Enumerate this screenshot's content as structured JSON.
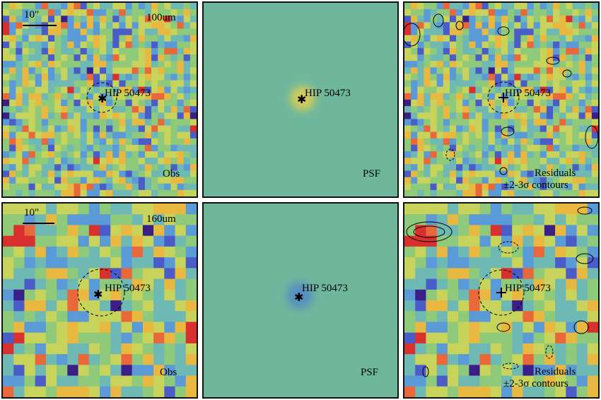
{
  "rows": [
    {
      "band": "100um",
      "scale_label": "10\"",
      "source": "HIP 50473",
      "panels": [
        {
          "type": "Obs",
          "label": "Obs"
        },
        {
          "type": "PSF",
          "label": "PSF"
        },
        {
          "type": "Residuals",
          "label_line1": "Residuals",
          "label_line2": "±2-3σ contours"
        }
      ]
    },
    {
      "band": "160um",
      "scale_label": "10\"",
      "source": "HIP 50473",
      "panels": [
        {
          "type": "Obs",
          "label": "Obs"
        },
        {
          "type": "PSF",
          "label": "PSF"
        },
        {
          "type": "Residuals",
          "label_line1": "Residuals",
          "label_line2": "±2-3σ contours"
        }
      ]
    }
  ],
  "colors": {
    "psf_background": "#6fb79c",
    "frame": "#111111",
    "colormap": [
      "#3a1f86",
      "#4a5cc8",
      "#5a9ad6",
      "#6fb9b4",
      "#8fc97a",
      "#c7d35a",
      "#e8b840",
      "#e8683a",
      "#d8302e"
    ]
  },
  "icons": [
    "star-icon",
    "crosshair-icon",
    "dashed-circle-icon"
  ]
}
